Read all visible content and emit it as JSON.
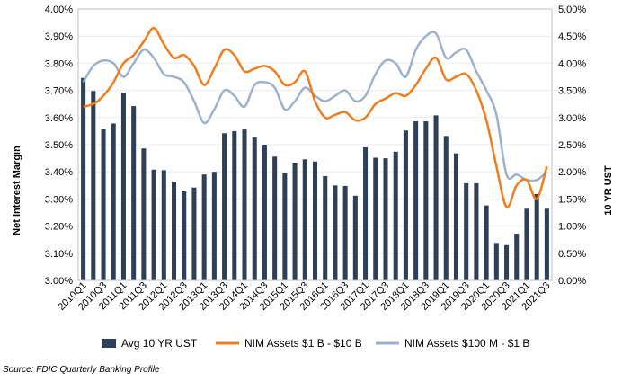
{
  "chart_data": {
    "type": "bar+line",
    "title": "",
    "ylabel_left": "Net Interest Margin",
    "ylabel_right": "10 YR UST",
    "ylim_left": [
      3.0,
      4.0
    ],
    "ylim_right": [
      0.0,
      5.0
    ],
    "yticks_left": [
      "3.00%",
      "3.10%",
      "3.20%",
      "3.30%",
      "3.40%",
      "3.50%",
      "3.60%",
      "3.70%",
      "3.80%",
      "3.90%",
      "4.00%"
    ],
    "yticks_right": [
      "0.00%",
      "0.50%",
      "1.00%",
      "1.50%",
      "2.00%",
      "2.50%",
      "3.00%",
      "3.50%",
      "4.00%",
      "4.50%",
      "5.00%"
    ],
    "xtick_labels": [
      "2010Q1",
      "2010Q3",
      "2011Q1",
      "2011Q3",
      "2012Q1",
      "2012Q3",
      "2013Q1",
      "2013Q3",
      "2014Q1",
      "2014Q3",
      "2015Q1",
      "2015Q3",
      "2016Q1",
      "2016Q3",
      "2017Q1",
      "2017Q3",
      "2018Q1",
      "2018Q3",
      "2019Q1",
      "2019Q3",
      "2020Q1",
      "2020Q3",
      "2021Q1",
      "2021Q3"
    ],
    "categories": [
      "2010Q1",
      "2010Q2",
      "2010Q3",
      "2010Q4",
      "2011Q1",
      "2011Q2",
      "2011Q3",
      "2011Q4",
      "2012Q1",
      "2012Q2",
      "2012Q3",
      "2012Q4",
      "2013Q1",
      "2013Q2",
      "2013Q3",
      "2013Q4",
      "2014Q1",
      "2014Q2",
      "2014Q3",
      "2014Q4",
      "2015Q1",
      "2015Q2",
      "2015Q3",
      "2015Q4",
      "2016Q1",
      "2016Q2",
      "2016Q3",
      "2016Q4",
      "2017Q1",
      "2017Q2",
      "2017Q3",
      "2017Q4",
      "2018Q1",
      "2018Q2",
      "2018Q3",
      "2018Q4",
      "2019Q1",
      "2019Q2",
      "2019Q3",
      "2019Q4",
      "2020Q1",
      "2020Q2",
      "2020Q3",
      "2020Q4",
      "2021Q1",
      "2021Q2",
      "2021Q3"
    ],
    "series": [
      {
        "name": "Avg 10 YR UST",
        "type": "bar",
        "axis": "right",
        "color": "#2e4057",
        "values": [
          3.73,
          3.49,
          2.79,
          2.89,
          3.46,
          3.21,
          2.43,
          2.04,
          2.03,
          1.82,
          1.64,
          1.71,
          1.95,
          2.0,
          2.71,
          2.75,
          2.78,
          2.63,
          2.5,
          2.28,
          1.97,
          2.17,
          2.23,
          2.19,
          1.92,
          1.75,
          1.74,
          1.56,
          2.45,
          2.26,
          2.25,
          2.37,
          2.76,
          2.93,
          2.93,
          3.04,
          2.66,
          2.34,
          1.79,
          1.79,
          1.38,
          0.69,
          0.65,
          0.86,
          1.32,
          1.59,
          1.32
        ]
      },
      {
        "name": "NIM Assets $1 B - $10 B",
        "type": "line",
        "axis": "left",
        "color": "#f07d1e",
        "values": [
          3.64,
          3.65,
          3.68,
          3.73,
          3.8,
          3.83,
          3.88,
          3.93,
          3.87,
          3.82,
          3.83,
          3.79,
          3.72,
          3.78,
          3.85,
          3.83,
          3.77,
          3.78,
          3.79,
          3.77,
          3.72,
          3.73,
          3.77,
          3.66,
          3.6,
          3.61,
          3.62,
          3.59,
          3.6,
          3.65,
          3.67,
          3.69,
          3.68,
          3.72,
          3.78,
          3.82,
          3.74,
          3.75,
          3.76,
          3.7,
          3.59,
          3.42,
          3.27,
          3.35,
          3.37,
          3.3,
          3.42
        ]
      },
      {
        "name": "NIM Assets $100 M - $1 B",
        "type": "line",
        "axis": "left",
        "color": "#9cb2cc",
        "values": [
          3.73,
          3.79,
          3.81,
          3.8,
          3.75,
          3.8,
          3.85,
          3.82,
          3.76,
          3.75,
          3.73,
          3.66,
          3.58,
          3.63,
          3.7,
          3.68,
          3.64,
          3.72,
          3.73,
          3.71,
          3.63,
          3.66,
          3.71,
          3.68,
          3.66,
          3.68,
          3.7,
          3.66,
          3.68,
          3.76,
          3.81,
          3.8,
          3.75,
          3.85,
          3.9,
          3.91,
          3.82,
          3.84,
          3.85,
          3.77,
          3.7,
          3.61,
          3.39,
          3.39,
          3.37,
          3.37,
          3.4
        ]
      }
    ],
    "source": "Source: FDIC Quarterly Banking Profile"
  }
}
